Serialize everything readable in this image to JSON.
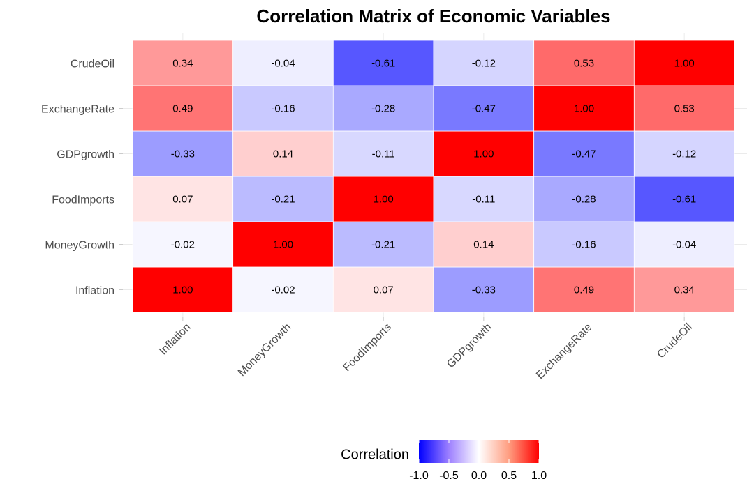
{
  "chart_data": {
    "type": "heatmap",
    "title": "Correlation Matrix of Economic Variables",
    "variables": [
      "Inflation",
      "MoneyGrowth",
      "FoodImports",
      "GDPgrowth",
      "ExchangeRate",
      "CrudeOil"
    ],
    "matrix": [
      [
        1.0,
        -0.02,
        0.07,
        -0.33,
        0.49,
        0.34
      ],
      [
        -0.02,
        1.0,
        -0.21,
        0.14,
        -0.16,
        -0.04
      ],
      [
        0.07,
        -0.21,
        1.0,
        -0.11,
        -0.28,
        -0.61
      ],
      [
        -0.33,
        0.14,
        -0.11,
        1.0,
        -0.47,
        -0.12
      ],
      [
        0.49,
        -0.16,
        -0.28,
        -0.47,
        1.0,
        0.53
      ],
      [
        0.34,
        -0.04,
        -0.61,
        -0.12,
        0.53,
        1.0
      ]
    ],
    "value_format_decimals": 2,
    "y_order": "Inflation at bottom, CrudeOil at top",
    "legend": {
      "title": "Correlation",
      "position": "bottom",
      "range": [
        -1,
        1
      ],
      "ticks": [
        -1.0,
        -0.5,
        0.0,
        0.5,
        1.0
      ],
      "tick_labels": [
        "-1.0",
        "-0.5",
        "0.0",
        "0.5",
        "1.0"
      ],
      "low_color": "#0000ff",
      "mid_color": "#ffffff",
      "high_color": "#ff0000"
    },
    "grid": true,
    "x_tick_rotation_deg": 45
  }
}
